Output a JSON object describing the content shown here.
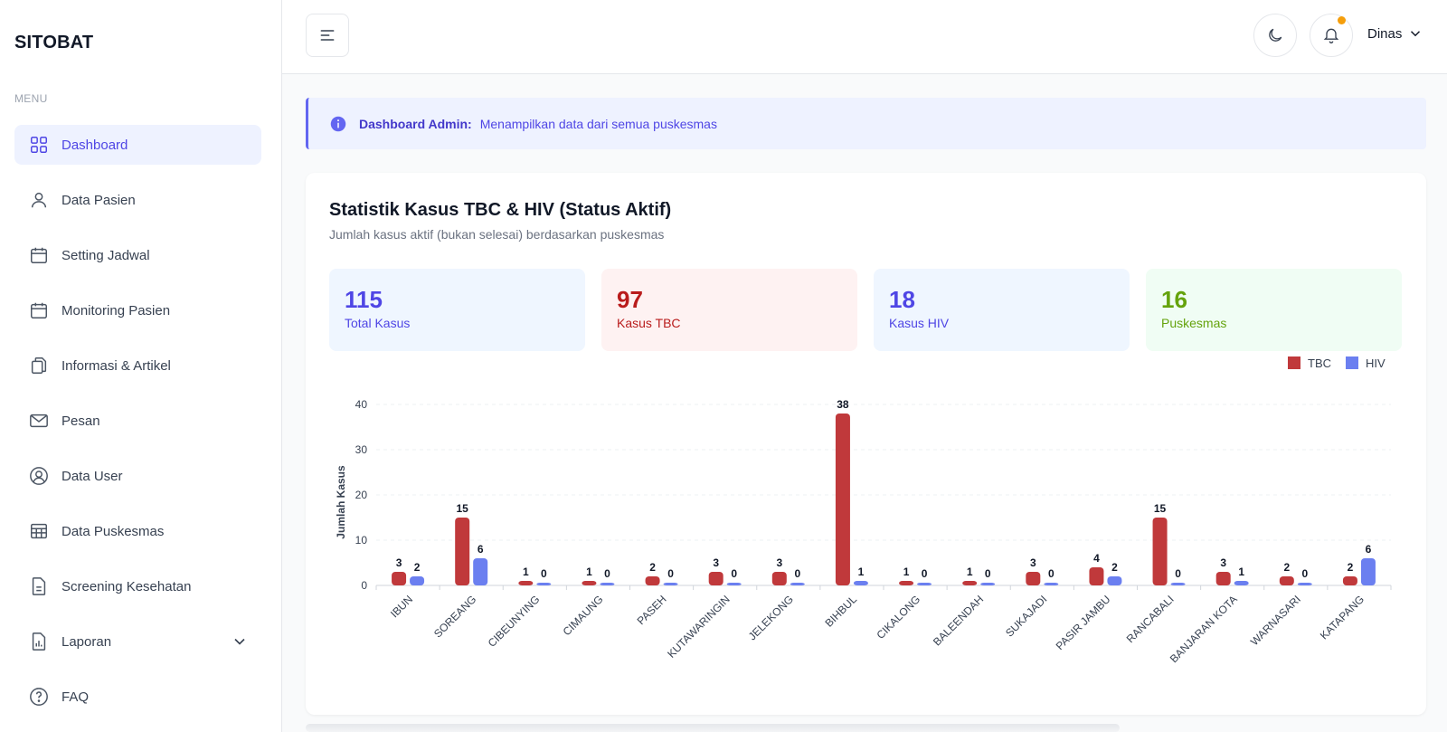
{
  "app": {
    "brand": "SITOBAT"
  },
  "sidebar": {
    "menu_label": "MENU",
    "items": [
      {
        "label": "Dashboard",
        "icon": "dashboard-grid-icon",
        "active": true
      },
      {
        "label": "Data Pasien",
        "icon": "user-icon"
      },
      {
        "label": "Setting Jadwal",
        "icon": "calendar-icon"
      },
      {
        "label": "Monitoring Pasien",
        "icon": "calendar-icon"
      },
      {
        "label": "Informasi & Artikel",
        "icon": "documents-icon"
      },
      {
        "label": "Pesan",
        "icon": "mail-icon"
      },
      {
        "label": "Data User",
        "icon": "user-circle-icon"
      },
      {
        "label": "Data Puskesmas",
        "icon": "table-icon"
      },
      {
        "label": "Screening Kesehatan",
        "icon": "file-text-icon"
      },
      {
        "label": "Laporan",
        "icon": "bar-chart-icon"
      },
      {
        "label": "FAQ",
        "icon": "help-circle-icon"
      }
    ]
  },
  "header": {
    "user_name": "Dinas"
  },
  "alert": {
    "title": "Dashboard Admin:",
    "message": "Menampilkan data dari semua puskesmas"
  },
  "card": {
    "title": "Statistik Kasus TBC & HIV (Status Aktif)",
    "subtitle": "Jumlah kasus aktif (bukan selesai) berdasarkan puskesmas"
  },
  "stats": {
    "total": {
      "value": "115",
      "label": "Total Kasus"
    },
    "tbc": {
      "value": "97",
      "label": "Kasus TBC"
    },
    "hiv": {
      "value": "18",
      "label": "Kasus HIV"
    },
    "puskesmas": {
      "value": "16",
      "label": "Puskesmas"
    }
  },
  "colors": {
    "tbc": "#c0393b",
    "hiv": "#6b7ff0",
    "accent": "#4f46e5"
  },
  "chart_data": {
    "type": "bar",
    "categories": [
      "IBUN",
      "SOREANG",
      "CIBEUNYING",
      "CIMAUNG",
      "PASEH",
      "KUTAWARINGIN",
      "JELEKONG",
      "BIHBUL",
      "CIKALONG",
      "BALEENDAH",
      "SUKAJADI",
      "PASIR JAMBU",
      "RANCABALI",
      "BANJARAN KOTA",
      "WARNASARI",
      "KATAPANG"
    ],
    "series": [
      {
        "name": "TBC",
        "values": [
          3,
          15,
          1,
          1,
          2,
          3,
          3,
          38,
          1,
          1,
          3,
          4,
          15,
          3,
          2,
          2
        ]
      },
      {
        "name": "HIV",
        "values": [
          2,
          6,
          0,
          0,
          0,
          0,
          0,
          1,
          0,
          0,
          0,
          2,
          0,
          1,
          0,
          6
        ]
      }
    ],
    "ylabel": "Jumlah Kasus",
    "yticks": [
      0,
      10,
      20,
      30,
      40
    ],
    "ylim": [
      0,
      40
    ],
    "grid": true,
    "legend": "top-right"
  }
}
